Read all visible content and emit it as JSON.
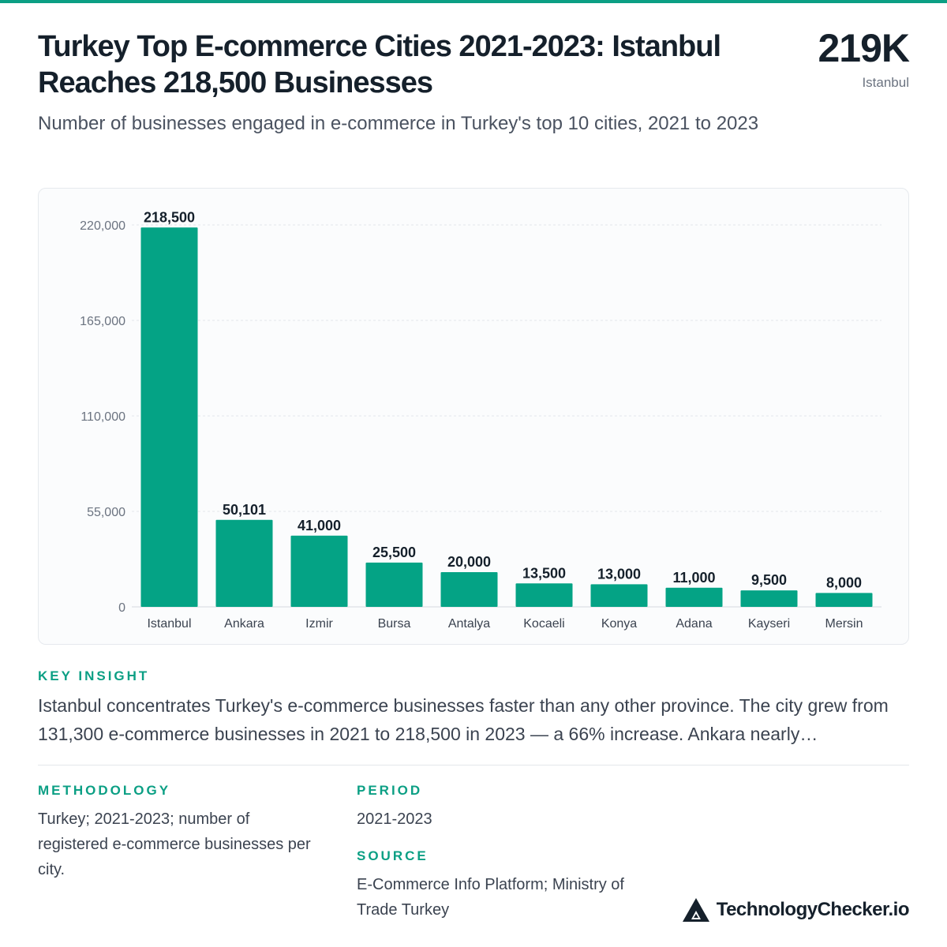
{
  "header": {
    "title": "Turkey Top E-commerce Cities 2021-2023: Istanbul Reaches 218,500 Businesses",
    "subtitle": "Number of businesses engaged in e-commerce in Turkey's top 10 cities, 2021 to 2023",
    "kpi_value": "219K",
    "kpi_label": "Istanbul"
  },
  "chart_data": {
    "type": "bar",
    "categories": [
      "Istanbul",
      "Ankara",
      "Izmir",
      "Bursa",
      "Antalya",
      "Kocaeli",
      "Konya",
      "Adana",
      "Kayseri",
      "Mersin"
    ],
    "values": [
      218500,
      50101,
      41000,
      25500,
      20000,
      13500,
      13000,
      11000,
      9500,
      8000
    ],
    "data_labels": [
      "218,500",
      "50,101",
      "41,000",
      "25,500",
      "20,000",
      "13,500",
      "13,000",
      "11,000",
      "9,500",
      "8,000"
    ],
    "yticks": [
      0,
      55000,
      110000,
      165000,
      220000
    ],
    "ytick_labels": [
      "0",
      "55,000",
      "110,000",
      "165,000",
      "220,000"
    ],
    "ylim": [
      0,
      220000
    ],
    "grid": true,
    "bar_color": "#04a385"
  },
  "insight": {
    "heading": "KEY INSIGHT",
    "text": "Istanbul concentrates Turkey's e-commerce businesses faster than any other province. The city grew from 131,300 e-commerce businesses in 2021 to 218,500 in 2023 — a 66% increase. Ankara nearly…"
  },
  "methodology": {
    "heading": "METHODOLOGY",
    "text": "Turkey; 2021-2023; number of registered e-commerce businesses per city."
  },
  "period": {
    "heading": "PERIOD",
    "text": "2021-2023"
  },
  "source": {
    "heading": "SOURCE",
    "text": "E-Commerce Info Platform; Ministry of Trade Turkey"
  },
  "brand": {
    "name": "TechnologyChecker.io",
    "icon": "triangle-logo-icon"
  },
  "colors": {
    "accent": "#0b9f84",
    "title": "#15202b",
    "body": "#3b4350"
  }
}
